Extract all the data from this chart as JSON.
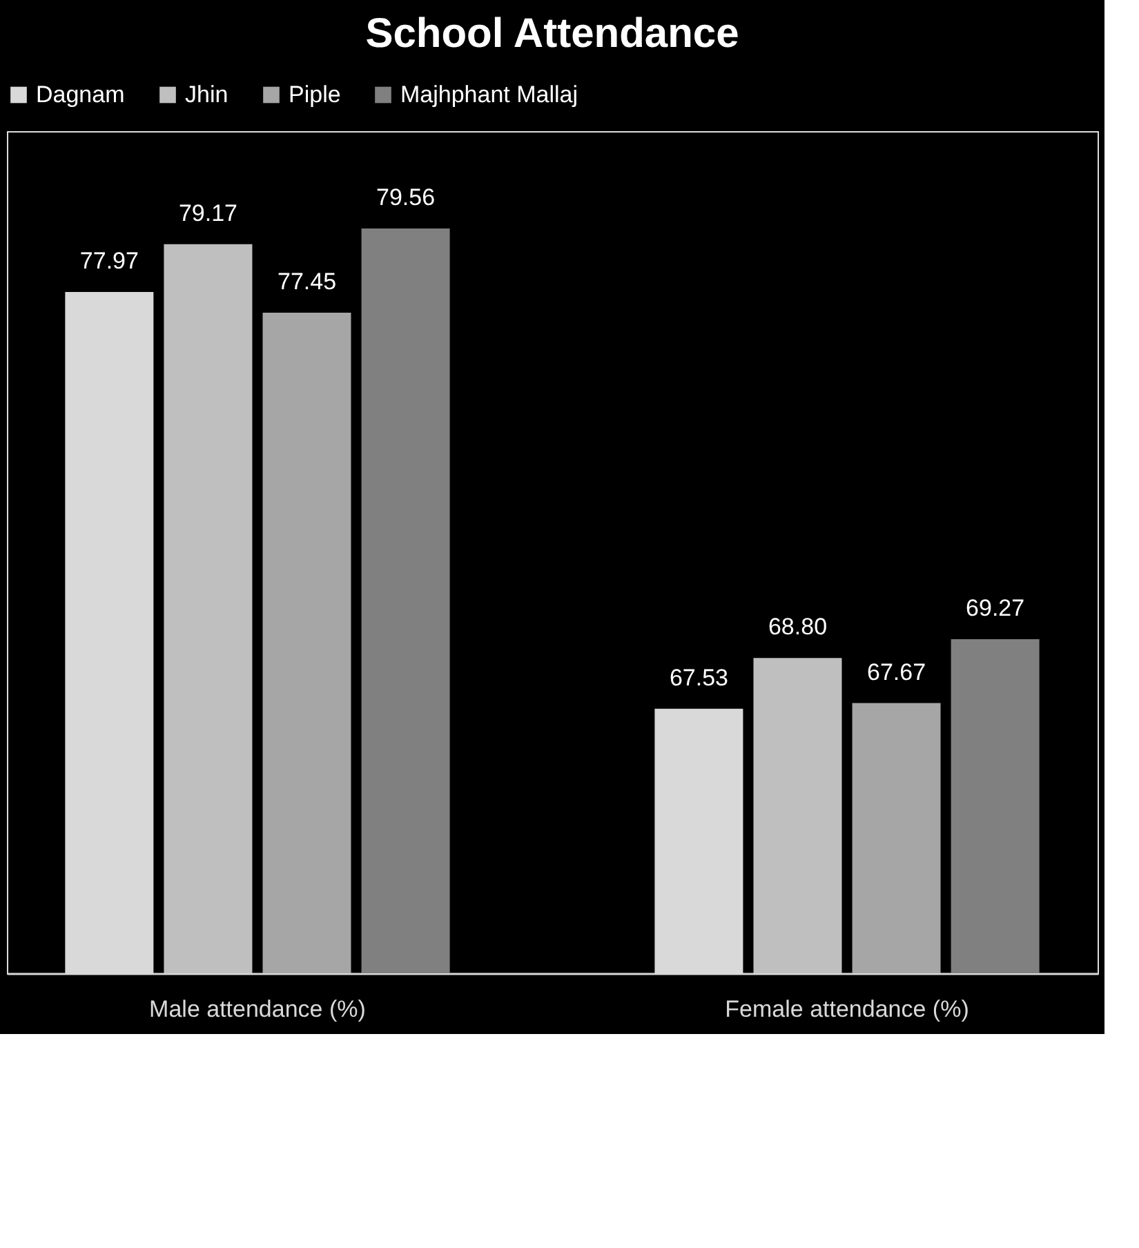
{
  "chart_data": {
    "type": "bar",
    "title": "School Attendance",
    "categories": [
      "Male attendance (%)",
      "Female attendance (%)"
    ],
    "series": [
      {
        "name": "Dagnam",
        "color": "#d9d9d9",
        "values": [
          77.97,
          67.53
        ],
        "value_labels": [
          "77.97",
          "67.53"
        ]
      },
      {
        "name": "Jhin",
        "color": "#bfbfbf",
        "values": [
          79.17,
          68.8
        ],
        "value_labels": [
          "79.17",
          "68.80"
        ]
      },
      {
        "name": "Piple",
        "color": "#a6a6a6",
        "values": [
          77.45,
          67.67
        ],
        "value_labels": [
          "77.45",
          "67.67"
        ]
      },
      {
        "name": "Majhphant Mallaj",
        "color": "#808080",
        "values": [
          79.56,
          69.27
        ],
        "value_labels": [
          "79.56",
          "69.27"
        ]
      }
    ],
    "ylim": [
      60.9,
      82
    ],
    "grid": false,
    "legend": "top",
    "tick_labels": "x"
  }
}
